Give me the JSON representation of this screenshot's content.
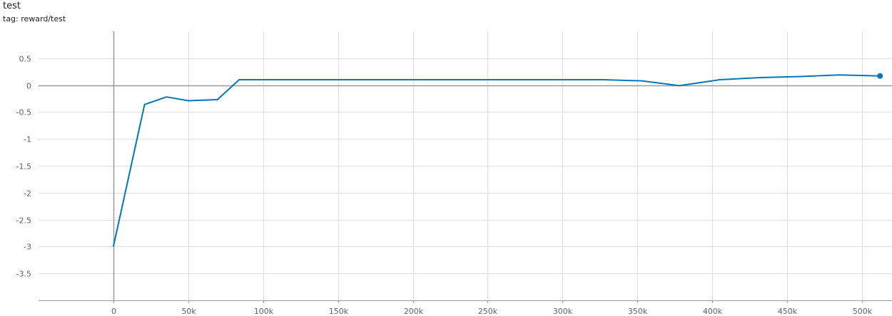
{
  "card": {
    "title": "test",
    "tag": "tag: reward/test"
  },
  "colors": {
    "line": "#0077bb",
    "grid": "#dddddd",
    "zero_axis": "#999999",
    "tick_text": "#616161"
  },
  "chart_data": {
    "type": "line",
    "title": "test",
    "subtitle": "tag: reward/test",
    "xlabel": "",
    "ylabel": "",
    "xlim": [
      -50000,
      520000
    ],
    "ylim": [
      -4,
      1
    ],
    "grid": true,
    "legend": "none",
    "x_ticks": [
      0,
      50000,
      100000,
      150000,
      200000,
      250000,
      300000,
      350000,
      400000,
      450000,
      500000
    ],
    "x_tick_labels": [
      "0",
      "50k",
      "100k",
      "150k",
      "200k",
      "250k",
      "300k",
      "350k",
      "400k",
      "450k",
      "500k"
    ],
    "y_ticks": [
      0.5,
      0,
      -0.5,
      -1,
      -1.5,
      -2,
      -2.5,
      -3,
      -3.5
    ],
    "y_tick_labels": [
      "0.5",
      "0",
      "-0.5",
      "-1",
      "-1.5",
      "-2",
      "-2.5",
      "-3",
      "-3.5"
    ],
    "series": [
      {
        "x": [
          0,
          20800,
          35500,
          50000,
          69500,
          84000,
          100000,
          150000,
          200000,
          250000,
          300000,
          327000,
          353000,
          378000,
          405000,
          432000,
          459000,
          485000,
          512000
        ],
        "y": [
          -3.0,
          -0.36,
          -0.22,
          -0.29,
          -0.27,
          0.1,
          0.1,
          0.1,
          0.1,
          0.1,
          0.1,
          0.1,
          0.08,
          -0.01,
          0.1,
          0.14,
          0.16,
          0.19,
          0.17
        ]
      }
    ]
  }
}
